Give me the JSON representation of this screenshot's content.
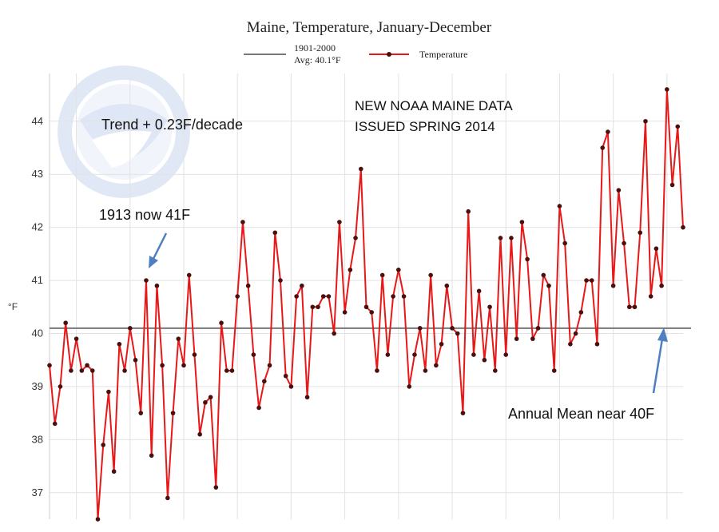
{
  "chart_data": {
    "type": "line",
    "title": "Maine, Temperature, January-December",
    "xlabel": "",
    "ylabel": "°F",
    "ylim": [
      36.5,
      44.9
    ],
    "yticks": [
      37,
      38,
      39,
      40,
      41,
      42,
      43,
      44
    ],
    "grid": true,
    "legend_position": "top-center",
    "legend": {
      "baseline_line1": "1901-2000",
      "baseline_line2": "Avg: 40.1°F",
      "series_label": "Temperature"
    },
    "baseline": {
      "value": 40.1,
      "color": "#777777"
    },
    "series": [
      {
        "color": "#e81818",
        "marker_color": "#4a1010",
        "x": [
          1895,
          1896,
          1897,
          1898,
          1899,
          1900,
          1901,
          1902,
          1903,
          1904,
          1905,
          1906,
          1907,
          1908,
          1909,
          1910,
          1911,
          1912,
          1913,
          1914,
          1915,
          1916,
          1917,
          1918,
          1919,
          1920,
          1921,
          1922,
          1923,
          1924,
          1925,
          1926,
          1927,
          1928,
          1929,
          1930,
          1931,
          1932,
          1933,
          1934,
          1935,
          1936,
          1937,
          1938,
          1939,
          1940,
          1941,
          1942,
          1943,
          1944,
          1945,
          1946,
          1947,
          1948,
          1949,
          1950,
          1951,
          1952,
          1953,
          1954,
          1955,
          1956,
          1957,
          1958,
          1959,
          1960,
          1961,
          1962,
          1963,
          1964,
          1965,
          1966,
          1967,
          1968,
          1969,
          1970,
          1971,
          1972,
          1973,
          1974,
          1975,
          1976,
          1977,
          1978,
          1979,
          1980,
          1981,
          1982,
          1983,
          1984,
          1985,
          1986,
          1987,
          1988,
          1989,
          1990,
          1991,
          1992,
          1993,
          1994,
          1995,
          1996,
          1997,
          1998,
          1999,
          2000,
          2001,
          2002,
          2003,
          2004,
          2005,
          2006,
          2007,
          2008,
          2009,
          2010,
          2011,
          2012,
          2013
        ],
        "values": [
          39.4,
          38.3,
          39.0,
          40.2,
          39.3,
          39.9,
          39.3,
          39.4,
          39.3,
          36.5,
          37.9,
          38.9,
          37.4,
          39.8,
          39.3,
          40.1,
          39.5,
          38.5,
          41.0,
          37.7,
          40.9,
          39.4,
          36.9,
          38.5,
          39.9,
          39.4,
          41.1,
          39.6,
          38.1,
          38.7,
          38.8,
          37.1,
          40.2,
          39.3,
          39.3,
          40.7,
          42.1,
          40.9,
          39.6,
          38.6,
          39.1,
          39.4,
          41.9,
          41.0,
          39.2,
          39.0,
          40.7,
          40.9,
          38.8,
          40.5,
          40.5,
          40.7,
          40.7,
          40.0,
          42.1,
          40.4,
          41.2,
          41.8,
          43.1,
          40.5,
          40.4,
          39.3,
          41.1,
          39.6,
          40.7,
          41.2,
          40.7,
          39.0,
          39.6,
          40.1,
          39.3,
          41.1,
          39.4,
          39.8,
          40.9,
          40.1,
          40.0,
          38.5,
          42.3,
          39.6,
          40.8,
          39.5,
          40.5,
          39.3,
          41.8,
          39.6,
          41.8,
          39.9,
          42.1,
          41.4,
          39.9,
          40.1,
          41.1,
          40.9,
          39.3,
          42.4,
          41.7,
          39.8,
          40.0,
          40.4,
          41.0,
          41.0,
          39.8,
          43.5,
          43.8,
          40.9,
          42.7,
          41.7,
          40.5,
          40.5,
          41.9,
          44.0,
          40.7,
          41.6,
          40.9,
          44.6,
          42.8,
          43.9,
          42.0
        ]
      }
    ],
    "annotations": {
      "trend": "Trend + 0.23F/decade",
      "noaa_line1": "NEW NOAA MAINE DATA",
      "noaa_line2": "ISSUED SPRING 2014",
      "year_1913": "1913 now 41F",
      "annual_mean": "Annual Mean near 40F"
    },
    "arrow_color": "#4f7fc0"
  }
}
